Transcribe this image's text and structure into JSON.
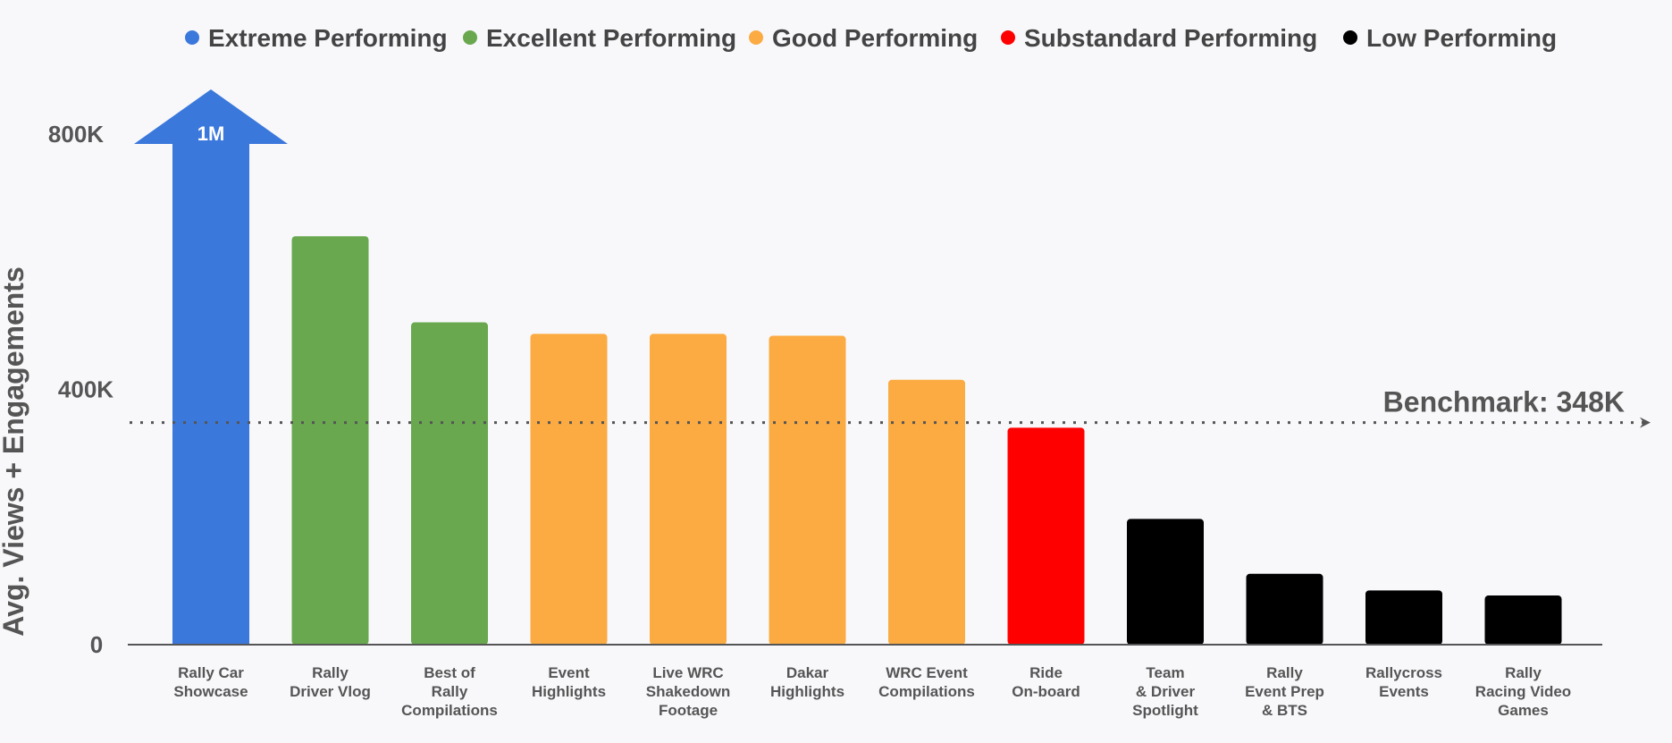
{
  "chart_data": {
    "type": "bar",
    "title": "",
    "xlabel": "",
    "ylabel": "Avg. Views + Engagements",
    "ylim": [
      0,
      800000
    ],
    "yticks": [
      {
        "value": 0,
        "label": "0"
      },
      {
        "value": 400000,
        "label": "400K"
      },
      {
        "value": 800000,
        "label": "800K"
      }
    ],
    "legend": [
      {
        "name": "Extreme Performing",
        "color": "#3b78db"
      },
      {
        "name": "Excellent Performing",
        "color": "#69a84f"
      },
      {
        "name": "Good Performing",
        "color": "#fbab42"
      },
      {
        "name": "Substandard Performing",
        "color": "#ff0000"
      },
      {
        "name": "Low Performing",
        "color": "#000000"
      }
    ],
    "benchmark": {
      "value": 348000,
      "label": "Benchmark: 348K"
    },
    "bars": [
      {
        "label": [
          "Rally Car",
          "Showcase"
        ],
        "value": 1000000,
        "category": 0,
        "value_label": "1M",
        "capped": true
      },
      {
        "label": [
          "Rally",
          "Driver Vlog"
        ],
        "value": 640000,
        "category": 1
      },
      {
        "label": [
          "Best of",
          "Rally",
          "Compilations"
        ],
        "value": 505000,
        "category": 1
      },
      {
        "label": [
          "Event",
          "Highlights"
        ],
        "value": 487000,
        "category": 2
      },
      {
        "label": [
          "Live WRC",
          "Shakedown",
          "Footage"
        ],
        "value": 487000,
        "category": 2
      },
      {
        "label": [
          "Dakar",
          "Highlights"
        ],
        "value": 484000,
        "category": 2
      },
      {
        "label": [
          "WRC Event",
          "Compilations"
        ],
        "value": 415000,
        "category": 2
      },
      {
        "label": [
          "Ride",
          "On-board"
        ],
        "value": 340000,
        "category": 3
      },
      {
        "label": [
          "Team",
          "& Driver",
          "Spotlight"
        ],
        "value": 197000,
        "category": 4
      },
      {
        "label": [
          "Rally",
          "Event Prep",
          "& BTS"
        ],
        "value": 111000,
        "category": 4
      },
      {
        "label": [
          "Rallycross",
          "Events"
        ],
        "value": 85000,
        "category": 4
      },
      {
        "label": [
          "Rally",
          "Racing Video",
          "Games"
        ],
        "value": 77000,
        "category": 4
      }
    ]
  }
}
